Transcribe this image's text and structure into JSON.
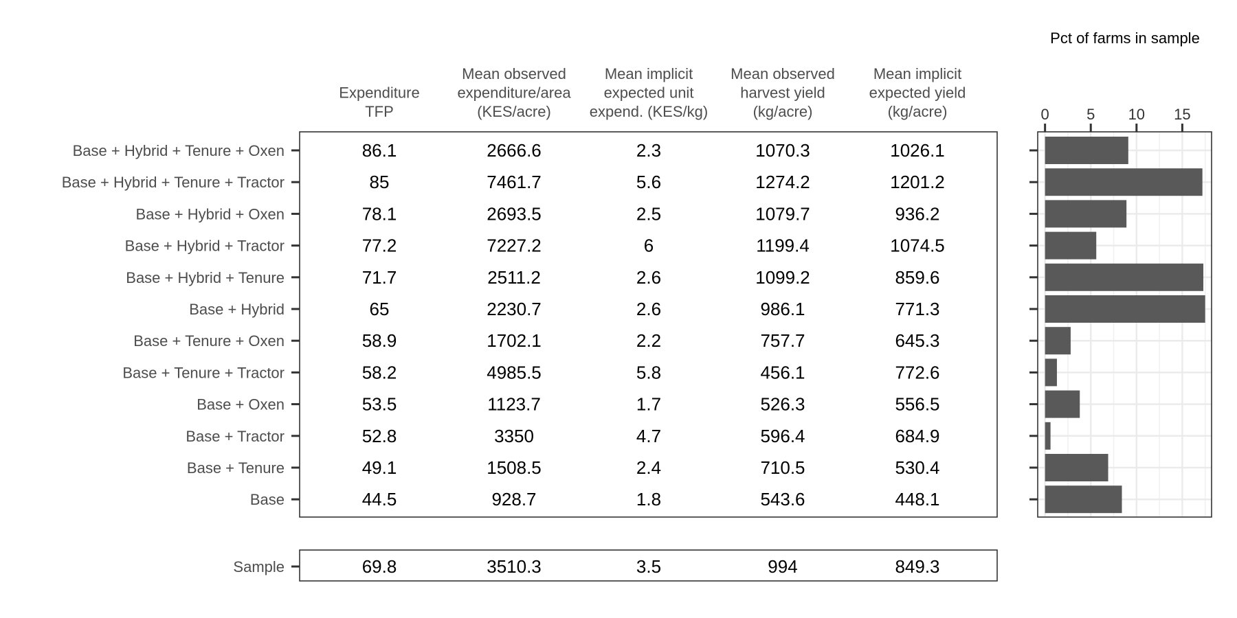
{
  "chart_data": {
    "type": "table",
    "columns": [
      [
        "Expenditure",
        "TFP"
      ],
      [
        "Mean observed",
        "expenditure/area",
        "(KES/acre)"
      ],
      [
        "Mean implicit",
        "expected unit",
        "expend. (KES/kg)"
      ],
      [
        "Mean observed",
        "harvest yield",
        "(kg/acre)"
      ],
      [
        "Mean implicit",
        "expected yield",
        "(kg/acre)"
      ]
    ],
    "rows": [
      {
        "label": "Base + Hybrid + Tenure + Oxen",
        "values": [
          "86.1",
          "2666.6",
          "2.3",
          "1070.3",
          "1026.1"
        ],
        "pct": 9.1
      },
      {
        "label": "Base + Hybrid + Tenure + Tractor",
        "values": [
          "85",
          "7461.7",
          "5.6",
          "1274.2",
          "1201.2"
        ],
        "pct": 17.2
      },
      {
        "label": "Base + Hybrid + Oxen",
        "values": [
          "78.1",
          "2693.5",
          "2.5",
          "1079.7",
          "936.2"
        ],
        "pct": 8.9
      },
      {
        "label": "Base + Hybrid + Tractor",
        "values": [
          "77.2",
          "7227.2",
          "6",
          "1199.4",
          "1074.5"
        ],
        "pct": 5.6
      },
      {
        "label": "Base + Hybrid + Tenure",
        "values": [
          "71.7",
          "2511.2",
          "2.6",
          "1099.2",
          "859.6"
        ],
        "pct": 17.3
      },
      {
        "label": "Base + Hybrid",
        "values": [
          "65",
          "2230.7",
          "2.6",
          "986.1",
          "771.3"
        ],
        "pct": 17.5
      },
      {
        "label": "Base + Tenure + Oxen",
        "values": [
          "58.9",
          "1702.1",
          "2.2",
          "757.7",
          "645.3"
        ],
        "pct": 2.8
      },
      {
        "label": "Base + Tenure + Tractor",
        "values": [
          "58.2",
          "4985.5",
          "5.8",
          "456.1",
          "772.6"
        ],
        "pct": 1.3
      },
      {
        "label": "Base + Oxen",
        "values": [
          "53.5",
          "1123.7",
          "1.7",
          "526.3",
          "556.5"
        ],
        "pct": 3.8
      },
      {
        "label": "Base + Tractor",
        "values": [
          "52.8",
          "3350",
          "4.7",
          "596.4",
          "684.9"
        ],
        "pct": 0.6
      },
      {
        "label": "Base + Tenure",
        "values": [
          "49.1",
          "1508.5",
          "2.4",
          "710.5",
          "530.4"
        ],
        "pct": 6.9
      },
      {
        "label": "Base",
        "values": [
          "44.5",
          "928.7",
          "1.8",
          "543.6",
          "448.1"
        ],
        "pct": 8.4
      }
    ],
    "sample": {
      "label": "Sample",
      "values": [
        "69.8",
        "3510.3",
        "3.5",
        "994",
        "849.3"
      ]
    },
    "bar_chart": {
      "type": "bar",
      "orientation": "horizontal",
      "title": "Pct of farms in sample",
      "xlim": [
        -0.8,
        18.2
      ],
      "xticks": [
        0,
        5,
        10,
        15
      ],
      "grid": true,
      "bar_color": "#595959"
    }
  }
}
